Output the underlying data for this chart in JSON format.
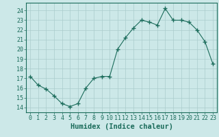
{
  "x": [
    0,
    1,
    2,
    3,
    4,
    5,
    6,
    7,
    8,
    9,
    10,
    11,
    12,
    13,
    14,
    15,
    16,
    17,
    18,
    19,
    20,
    21,
    22,
    23
  ],
  "y": [
    17.2,
    16.3,
    15.9,
    15.2,
    14.4,
    14.1,
    14.4,
    16.0,
    17.0,
    17.2,
    17.2,
    20.0,
    21.2,
    22.2,
    23.0,
    22.8,
    22.5,
    24.2,
    23.0,
    23.0,
    22.8,
    22.0,
    20.8,
    18.5
  ],
  "line_color": "#1a6b5a",
  "marker": "+",
  "marker_size": 4,
  "bg_color": "#cce8e8",
  "grid_color": "#aacccc",
  "xlabel": "Humidex (Indice chaleur)",
  "xlim": [
    -0.5,
    23.5
  ],
  "ylim": [
    13.5,
    24.8
  ],
  "yticks": [
    14,
    15,
    16,
    17,
    18,
    19,
    20,
    21,
    22,
    23,
    24
  ],
  "xticks": [
    0,
    1,
    2,
    3,
    4,
    5,
    6,
    7,
    8,
    9,
    10,
    11,
    12,
    13,
    14,
    15,
    16,
    17,
    18,
    19,
    20,
    21,
    22,
    23
  ],
  "tick_color": "#1a6b5a",
  "label_color": "#1a6b5a",
  "tick_fontsize": 6,
  "xlabel_fontsize": 7.5
}
